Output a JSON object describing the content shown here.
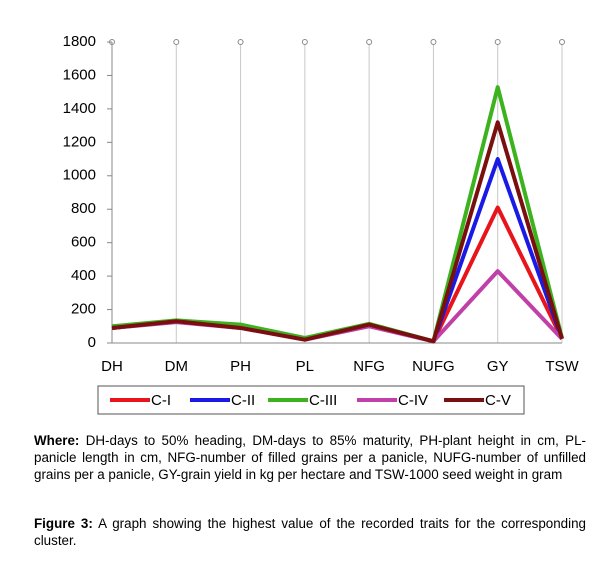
{
  "chart_data": {
    "type": "line",
    "categories": [
      "DH",
      "DM",
      "PH",
      "PL",
      "NFG",
      "NUFG",
      "GY",
      "TSW"
    ],
    "series": [
      {
        "name": "C-I",
        "color": "#e8141b",
        "values": [
          90,
          130,
          95,
          25,
          110,
          10,
          810,
          25
        ]
      },
      {
        "name": "C-II",
        "color": "#1a1ae6",
        "values": [
          90,
          130,
          95,
          25,
          110,
          10,
          1100,
          25
        ]
      },
      {
        "name": "C-III",
        "color": "#3cb31e",
        "values": [
          100,
          135,
          110,
          30,
          115,
          10,
          1530,
          30
        ]
      },
      {
        "name": "C-IV",
        "color": "#c040a8",
        "values": [
          90,
          125,
          90,
          20,
          100,
          10,
          430,
          25
        ]
      },
      {
        "name": "C-V",
        "color": "#7a0f0f",
        "values": [
          90,
          130,
          90,
          20,
          110,
          10,
          1320,
          25
        ]
      }
    ],
    "ylim": [
      0,
      1800
    ],
    "yticks": [
      0,
      200,
      400,
      600,
      800,
      1000,
      1200,
      1400,
      1600,
      1800
    ],
    "grid": true,
    "legend": "bottom"
  },
  "caption": {
    "where_label": "Where:",
    "where_text": "DH-days to 50% heading, DM-days to 85% maturity, PH-plant height in cm, PL-panicle length in cm, NFG-number of filled grains per a panicle, NUFG-number of unfilled grains per a panicle, GY-grain yield in kg per hectare and TSW-1000 seed weight in gram",
    "figure_label": "Figure 3:",
    "figure_text": "A graph showing the highest value of the recorded traits for the corresponding cluster."
  }
}
